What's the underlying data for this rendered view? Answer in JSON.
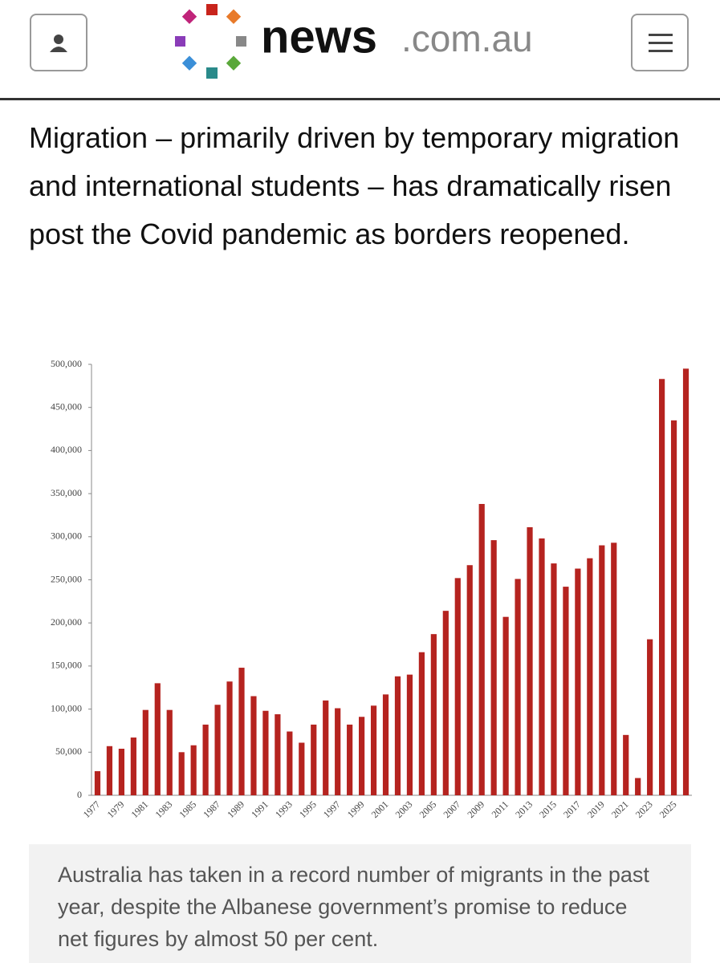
{
  "header": {
    "logo_main": "news",
    "logo_domain": ".com.au"
  },
  "article": {
    "paragraph": "Migration – primarily driven by temporary migration and international students – has dramatically risen post the Covid pandemic as borders reopened."
  },
  "chart_data": {
    "type": "bar",
    "color": "#b5231f",
    "categories": [
      "1977",
      null,
      "1979",
      null,
      "1981",
      null,
      "1983",
      null,
      "1985",
      null,
      "1987",
      null,
      "1989",
      null,
      "1991",
      null,
      "1993",
      null,
      "1995",
      null,
      "1997",
      null,
      "1999",
      null,
      "2001",
      null,
      "2003",
      null,
      "2005",
      null,
      "2007",
      null,
      "2009",
      null,
      "2011",
      null,
      "2013",
      null,
      "2015",
      null,
      "2017",
      null,
      "2019",
      null,
      "2021",
      null,
      "2023",
      null,
      "2025",
      null
    ],
    "values": [
      28000,
      57000,
      54000,
      67000,
      99000,
      130000,
      99000,
      50000,
      58000,
      82000,
      105000,
      132000,
      148000,
      115000,
      98000,
      94000,
      74000,
      61000,
      82000,
      110000,
      101000,
      82000,
      91000,
      104000,
      117000,
      138000,
      140000,
      166000,
      187000,
      214000,
      252000,
      267000,
      338000,
      296000,
      207000,
      251000,
      311000,
      298000,
      269000,
      242000,
      263000,
      275000,
      290000,
      293000,
      70000,
      20000,
      181000,
      483000,
      435000,
      495000
    ],
    "ylim": [
      0,
      500000
    ],
    "yticks": [
      0,
      {
        "value": 50000,
        "label": "50,000"
      },
      {
        "value": 100000,
        "label": "100,000"
      },
      {
        "value": 150000,
        "label": "150,000"
      },
      {
        "value": 200000,
        "label": "200,000"
      },
      {
        "value": 250000,
        "label": "250,000"
      },
      {
        "value": 300000,
        "label": "300,000"
      },
      {
        "value": 350000,
        "label": "350,000"
      },
      {
        "value": 400000,
        "label": "400,000"
      },
      {
        "value": 450000,
        "label": "450,000"
      },
      {
        "value": 500000,
        "label": "500,000"
      }
    ]
  },
  "caption": "Australia has taken in a record number of migrants in the past year, despite the Albanese government’s promise to reduce net figures by almost 50 per cent."
}
